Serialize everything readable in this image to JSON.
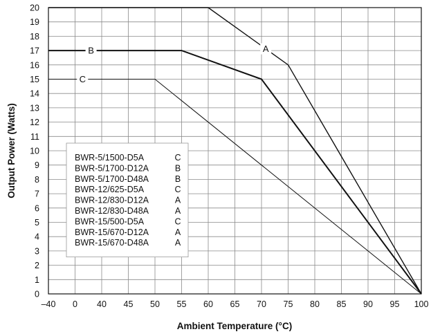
{
  "chart_data": {
    "type": "line",
    "xlabel": "Ambient Temperature (°C)",
    "ylabel": "Output Power (Watts)",
    "x_ticks": [
      "–40",
      "0",
      "40",
      "45",
      "50",
      "55",
      "60",
      "65",
      "70",
      "75",
      "80",
      "85",
      "90",
      "95",
      "100"
    ],
    "y_ticks": [
      "0",
      "1",
      "2",
      "3",
      "4",
      "5",
      "6",
      "7",
      "8",
      "9",
      "10",
      "11",
      "12",
      "13",
      "14",
      "15",
      "16",
      "17",
      "18",
      "19",
      "20"
    ],
    "ylim": [
      0,
      20
    ],
    "grid": true,
    "series": [
      {
        "name": "A",
        "x": [
          "–40",
          "60",
          "75",
          "100"
        ],
        "y": [
          20,
          20,
          16,
          0
        ]
      },
      {
        "name": "B",
        "x": [
          "–40",
          "55",
          "70",
          "100"
        ],
        "y": [
          17,
          17,
          15,
          0
        ]
      },
      {
        "name": "C",
        "x": [
          "–40",
          "50",
          "100"
        ],
        "y": [
          15,
          15,
          0
        ]
      }
    ],
    "legend": {
      "placement": "lower-left",
      "entries": [
        {
          "model": "BWR-5/1500-D5A",
          "curve": "C"
        },
        {
          "model": "BWR-5/1700-D12A",
          "curve": "B"
        },
        {
          "model": "BWR-5/1700-D48A",
          "curve": "B"
        },
        {
          "model": "BWR-12/625-D5A",
          "curve": "C"
        },
        {
          "model": "BWR-12/830-D12A",
          "curve": "A"
        },
        {
          "model": "BWR-12/830-D48A",
          "curve": "A"
        },
        {
          "model": "BWR-15/500-D5A",
          "curve": "C"
        },
        {
          "model": "BWR-15/670-D12A",
          "curve": "A"
        },
        {
          "model": "BWR-15/670-D48A",
          "curve": "A"
        }
      ]
    }
  }
}
